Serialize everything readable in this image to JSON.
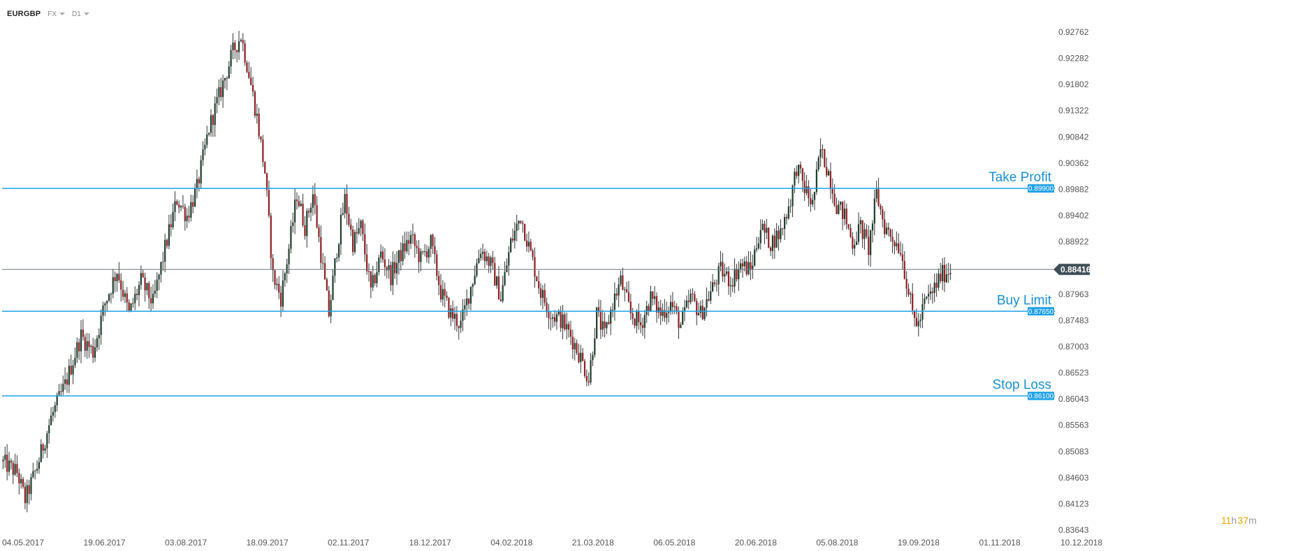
{
  "header": {
    "symbol": "EURGBP",
    "market": "FX",
    "timeframe": "D1"
  },
  "timer": {
    "hours": "11",
    "h_unit": "h",
    "minutes": "37",
    "m_unit": "m"
  },
  "colors": {
    "level_line": "#1ea0e6",
    "level_text": "#1a8fd0",
    "current_line": "#6b7880",
    "current_tag": "#3f4e57",
    "bull": "#1f3b2c",
    "bear": "#8b1e22",
    "wick": "#333333"
  },
  "chart_data": {
    "type": "candlestick",
    "title": "",
    "xlabel": "",
    "ylabel": "",
    "ylim": [
      0.83643,
      0.931
    ],
    "y_ticks": [
      "0.92762",
      "0.92282",
      "0.91802",
      "0.91322",
      "0.90842",
      "0.90362",
      "0.89882",
      "0.89402",
      "0.88922",
      "0.88442",
      "0.87963",
      "0.87483",
      "0.87003",
      "0.86523",
      "0.86043",
      "0.85563",
      "0.85083",
      "0.84603",
      "0.84123",
      "0.83643"
    ],
    "x_ticks": [
      "04.05.2017",
      "19.06.2017",
      "03.08.2017",
      "18.09.2017",
      "02.11.2017",
      "18.12.2017",
      "04.02.2018",
      "21.03.2018",
      "06.05.2018",
      "20.06.2018",
      "05.08.2018",
      "19.09.2018",
      "01.11.2018",
      "10.12.2018"
    ],
    "current_price": "0.88416",
    "levels": [
      {
        "name": "Take Profit",
        "value": "0.89900"
      },
      {
        "name": "Buy Limit",
        "value": "0.87650"
      },
      {
        "name": "Stop Loss",
        "value": "0.86100"
      }
    ],
    "price_path": [
      [
        0,
        0.849
      ],
      [
        8,
        0.847
      ],
      [
        12,
        0.842
      ],
      [
        18,
        0.848
      ],
      [
        25,
        0.857
      ],
      [
        32,
        0.863
      ],
      [
        40,
        0.872
      ],
      [
        46,
        0.869
      ],
      [
        52,
        0.878
      ],
      [
        58,
        0.884
      ],
      [
        64,
        0.876
      ],
      [
        70,
        0.882
      ],
      [
        76,
        0.878
      ],
      [
        82,
        0.888
      ],
      [
        88,
        0.897
      ],
      [
        93,
        0.894
      ],
      [
        98,
        0.899
      ],
      [
        104,
        0.91
      ],
      [
        110,
        0.917
      ],
      [
        116,
        0.924
      ],
      [
        120,
        0.927
      ],
      [
        124,
        0.92
      ],
      [
        128,
        0.912
      ],
      [
        132,
        0.902
      ],
      [
        136,
        0.883
      ],
      [
        140,
        0.879
      ],
      [
        144,
        0.888
      ],
      [
        148,
        0.898
      ],
      [
        152,
        0.892
      ],
      [
        156,
        0.898
      ],
      [
        160,
        0.887
      ],
      [
        164,
        0.876
      ],
      [
        168,
        0.888
      ],
      [
        172,
        0.897
      ],
      [
        176,
        0.889
      ],
      [
        180,
        0.892
      ],
      [
        185,
        0.88
      ],
      [
        190,
        0.887
      ],
      [
        195,
        0.883
      ],
      [
        200,
        0.887
      ],
      [
        205,
        0.89
      ],
      [
        210,
        0.886
      ],
      [
        215,
        0.889
      ],
      [
        220,
        0.88
      ],
      [
        225,
        0.876
      ],
      [
        230,
        0.874
      ],
      [
        235,
        0.881
      ],
      [
        240,
        0.888
      ],
      [
        245,
        0.885
      ],
      [
        250,
        0.879
      ],
      [
        255,
        0.889
      ],
      [
        260,
        0.894
      ],
      [
        265,
        0.887
      ],
      [
        270,
        0.88
      ],
      [
        275,
        0.876
      ],
      [
        280,
        0.875
      ],
      [
        285,
        0.872
      ],
      [
        290,
        0.868
      ],
      [
        294,
        0.864
      ],
      [
        298,
        0.876
      ],
      [
        302,
        0.872
      ],
      [
        306,
        0.878
      ],
      [
        310,
        0.882
      ],
      [
        315,
        0.876
      ],
      [
        320,
        0.874
      ],
      [
        325,
        0.879
      ],
      [
        330,
        0.876
      ],
      [
        335,
        0.878
      ],
      [
        340,
        0.874
      ],
      [
        345,
        0.879
      ],
      [
        350,
        0.876
      ],
      [
        355,
        0.88
      ],
      [
        360,
        0.884
      ],
      [
        365,
        0.882
      ],
      [
        370,
        0.885
      ],
      [
        375,
        0.884
      ],
      [
        380,
        0.892
      ],
      [
        385,
        0.889
      ],
      [
        390,
        0.891
      ],
      [
        395,
        0.897
      ],
      [
        398,
        0.903
      ],
      [
        402,
        0.899
      ],
      [
        406,
        0.896
      ],
      [
        410,
        0.906
      ],
      [
        414,
        0.902
      ],
      [
        418,
        0.896
      ],
      [
        422,
        0.894
      ],
      [
        426,
        0.889
      ],
      [
        430,
        0.892
      ],
      [
        434,
        0.888
      ],
      [
        438,
        0.898
      ],
      [
        442,
        0.892
      ],
      [
        446,
        0.89
      ],
      [
        450,
        0.888
      ],
      [
        453,
        0.882
      ],
      [
        456,
        0.876
      ],
      [
        459,
        0.874
      ],
      [
        462,
        0.878
      ],
      [
        466,
        0.88
      ],
      [
        470,
        0.883
      ],
      [
        474,
        0.884
      ]
    ],
    "candle_count": 475
  }
}
